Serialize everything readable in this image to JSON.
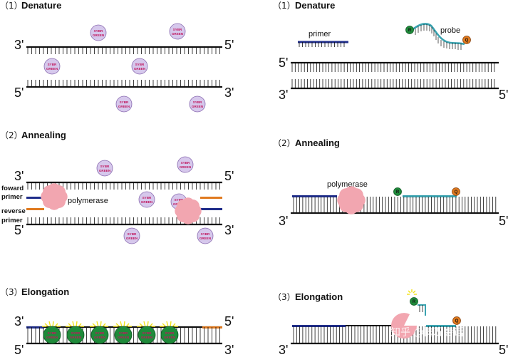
{
  "left": {
    "s1": {
      "num": "（1）",
      "title": "Denature"
    },
    "s2": {
      "num": "（2）",
      "title": "Annealing"
    },
    "s3": {
      "num": "（3）",
      "title": "Elongation"
    }
  },
  "right": {
    "s1": {
      "num": "（1）",
      "title": "Denature"
    },
    "s2": {
      "num": "（2）",
      "title": "Annealing"
    },
    "s3": {
      "num": "（3）",
      "title": "Elongation"
    }
  },
  "ends": {
    "three": "3'",
    "five": "5'"
  },
  "labels": {
    "primer": "primer",
    "probe": "probe",
    "polymerase": "polymerase",
    "foward": "foward",
    "reverse": "reverse",
    "primer_word": "primer"
  },
  "dye": {
    "line1": "SYBR",
    "line2": "GREEN"
  },
  "reporter": "R",
  "quencher": "Q",
  "watermark": "知乎 @情况会话",
  "colors": {
    "strand": "#111111",
    "forward_primer": "#1f2d8a",
    "reverse_primer": "#e07a1f",
    "probe": "#3aa3b0",
    "sybr_free": "#d6c8ec",
    "sybr_bound": "#1f8a3a",
    "polymerase": "#f2a6b0",
    "reporter": "#1f8a3a",
    "quencher": "#e07a1f",
    "glow": "#f2e21a"
  }
}
